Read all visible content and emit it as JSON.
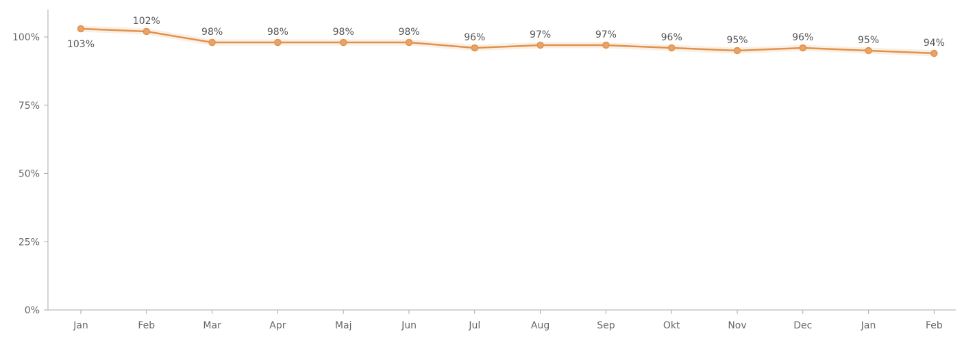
{
  "chart_data": {
    "type": "line",
    "title": "",
    "xlabel": "",
    "ylabel": "",
    "categories": [
      "Jan",
      "Feb",
      "Mar",
      "Apr",
      "Maj",
      "Jun",
      "Jul",
      "Aug",
      "Sep",
      "Okt",
      "Nov",
      "Dec",
      "Jan",
      "Feb"
    ],
    "series": [
      {
        "values": [
          103,
          102,
          98,
          98,
          98,
          98,
          96,
          97,
          97,
          96,
          95,
          96,
          95,
          94
        ],
        "labels": [
          "103%",
          "102%",
          "98%",
          "98%",
          "98%",
          "98%",
          "96%",
          "97%",
          "97%",
          "96%",
          "95%",
          "96%",
          "95%",
          "94%"
        ],
        "color": "#E0924A"
      }
    ],
    "y_ticks": [
      0,
      25,
      50,
      75,
      100
    ],
    "y_tick_labels": [
      "0%",
      "25%",
      "50%",
      "75%",
      "100%"
    ],
    "ylim": [
      0,
      110
    ],
    "grid": false,
    "legend": "none"
  },
  "colors": {
    "line": "#E0924A",
    "marker_fill": "#E8A36A",
    "axis": "#aaaaaa",
    "text": "#666666"
  }
}
